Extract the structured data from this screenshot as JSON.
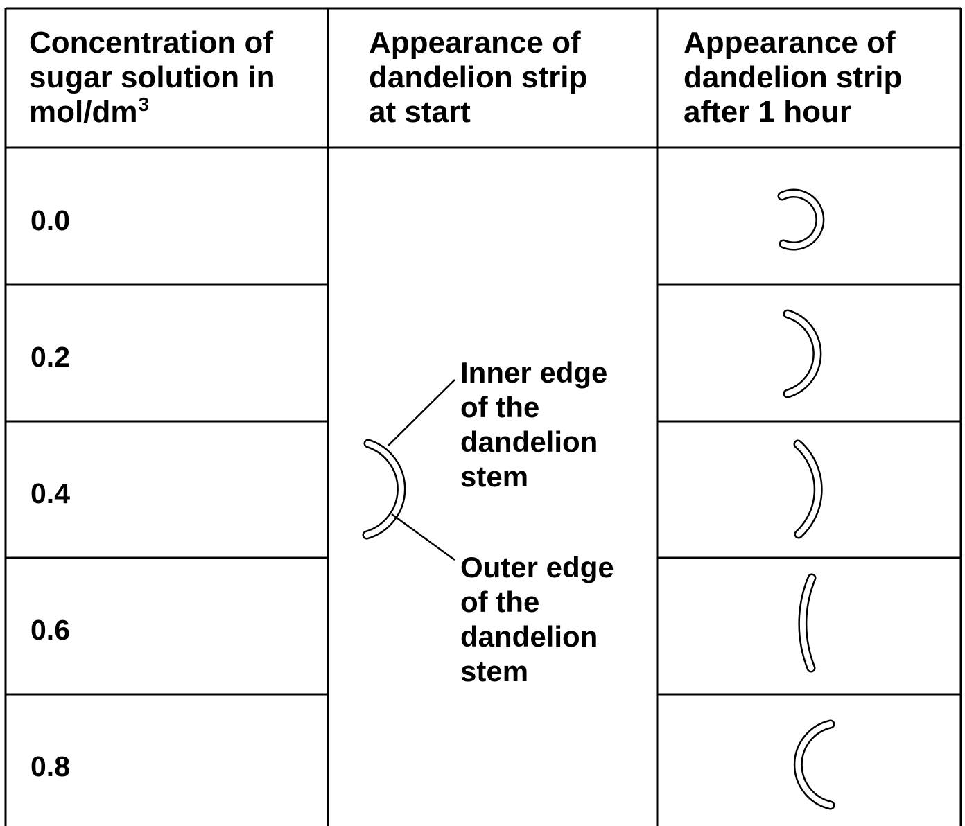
{
  "table": {
    "header": [
      {
        "lines": [
          "Concentration of",
          "sugar solution in",
          "mol/dm"
        ],
        "superscript": "3"
      },
      {
        "lines": [
          "Appearance of",
          "dandelion strip",
          "at start"
        ]
      },
      {
        "lines": [
          "Appearance of",
          "dandelion strip",
          "after 1 hour"
        ]
      }
    ],
    "rows": [
      "0.0",
      "0.2",
      "0.4",
      "0.6",
      "0.8"
    ]
  },
  "labels": {
    "inner": [
      "Inner edge",
      "of the",
      "dandelion",
      "stem"
    ],
    "outer": [
      "Outer edge",
      "of the",
      "dandelion",
      "stem"
    ]
  }
}
